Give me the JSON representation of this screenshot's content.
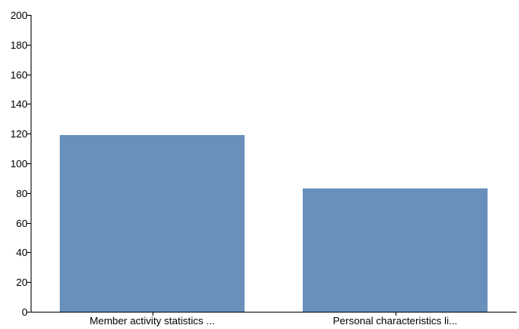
{
  "chart_data": {
    "type": "bar",
    "categories": [
      "Member activity statistics ...",
      "Personal characteristics li..."
    ],
    "values": [
      119,
      83
    ],
    "ylim": [
      0,
      200
    ],
    "yticks": [
      0,
      20,
      40,
      60,
      80,
      100,
      120,
      140,
      160,
      180,
      200
    ],
    "grid": false,
    "legend": "none",
    "title": "",
    "xlabel": "",
    "ylabel": "",
    "bar_color": "#6890bb"
  }
}
